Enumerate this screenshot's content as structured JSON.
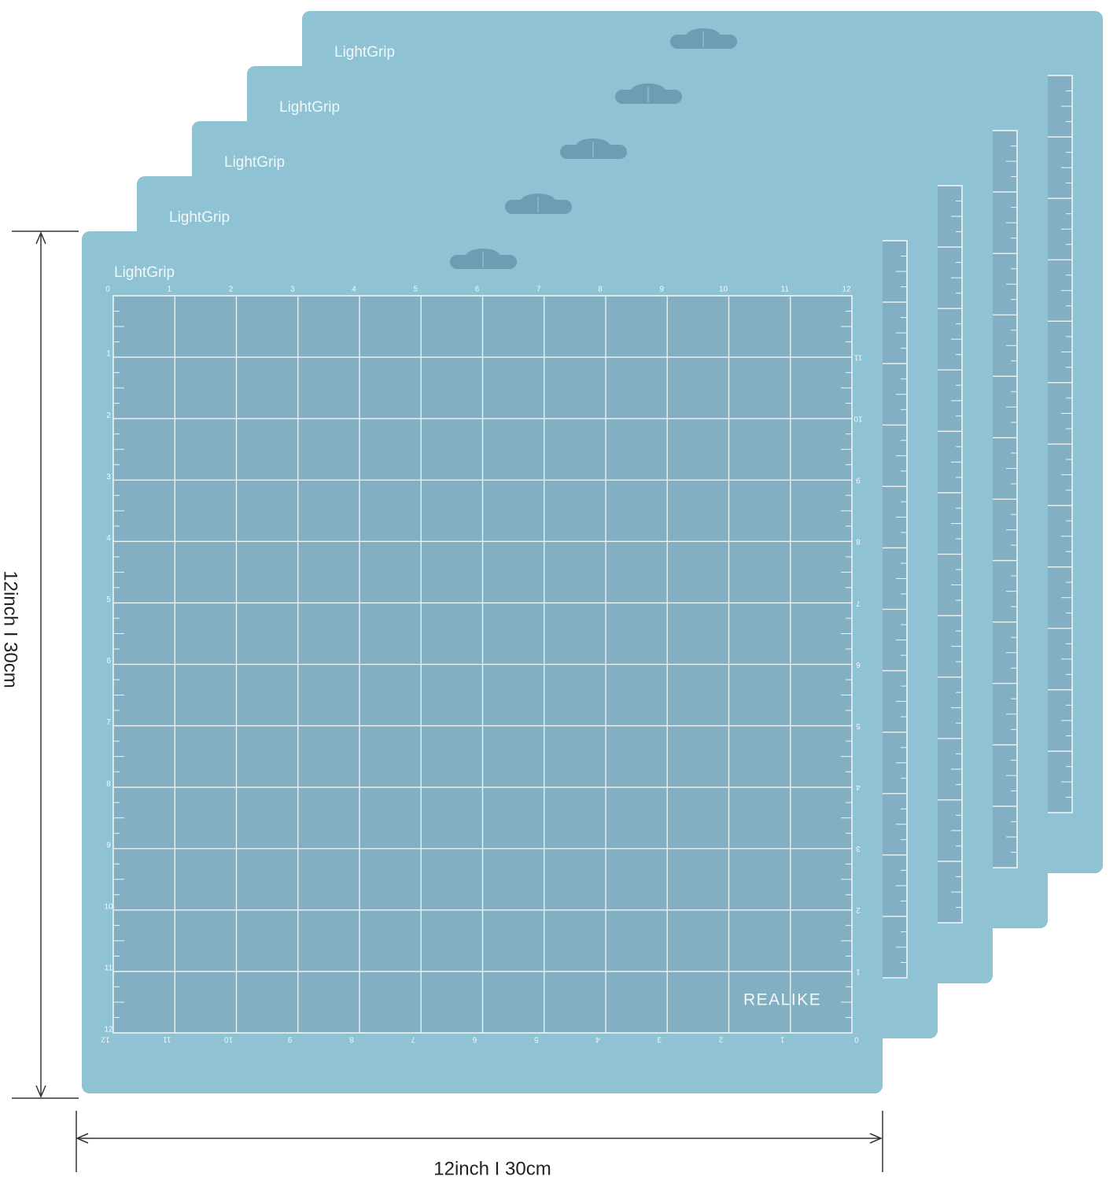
{
  "mats": [
    {
      "label": "LightGrip"
    },
    {
      "label": "LightGrip"
    },
    {
      "label": "LightGrip"
    },
    {
      "label": "LightGrip"
    },
    {
      "label": "LightGrip"
    }
  ],
  "brand": "REALIKE",
  "ruler": {
    "top": [
      0,
      1,
      2,
      3,
      4,
      5,
      6,
      7,
      8,
      9,
      10,
      11,
      12
    ],
    "left": [
      1,
      2,
      3,
      4,
      5,
      6,
      7,
      8,
      9,
      10,
      11,
      12
    ],
    "bottom": [
      12,
      11,
      10,
      9,
      8,
      7,
      6,
      5,
      4,
      3,
      2,
      1,
      0
    ],
    "right": [
      11,
      10,
      9,
      8,
      7,
      6,
      5,
      4,
      3,
      2,
      1
    ]
  },
  "dimensions": {
    "height": "12inch I 30cm",
    "width": "12inch I 30cm"
  }
}
